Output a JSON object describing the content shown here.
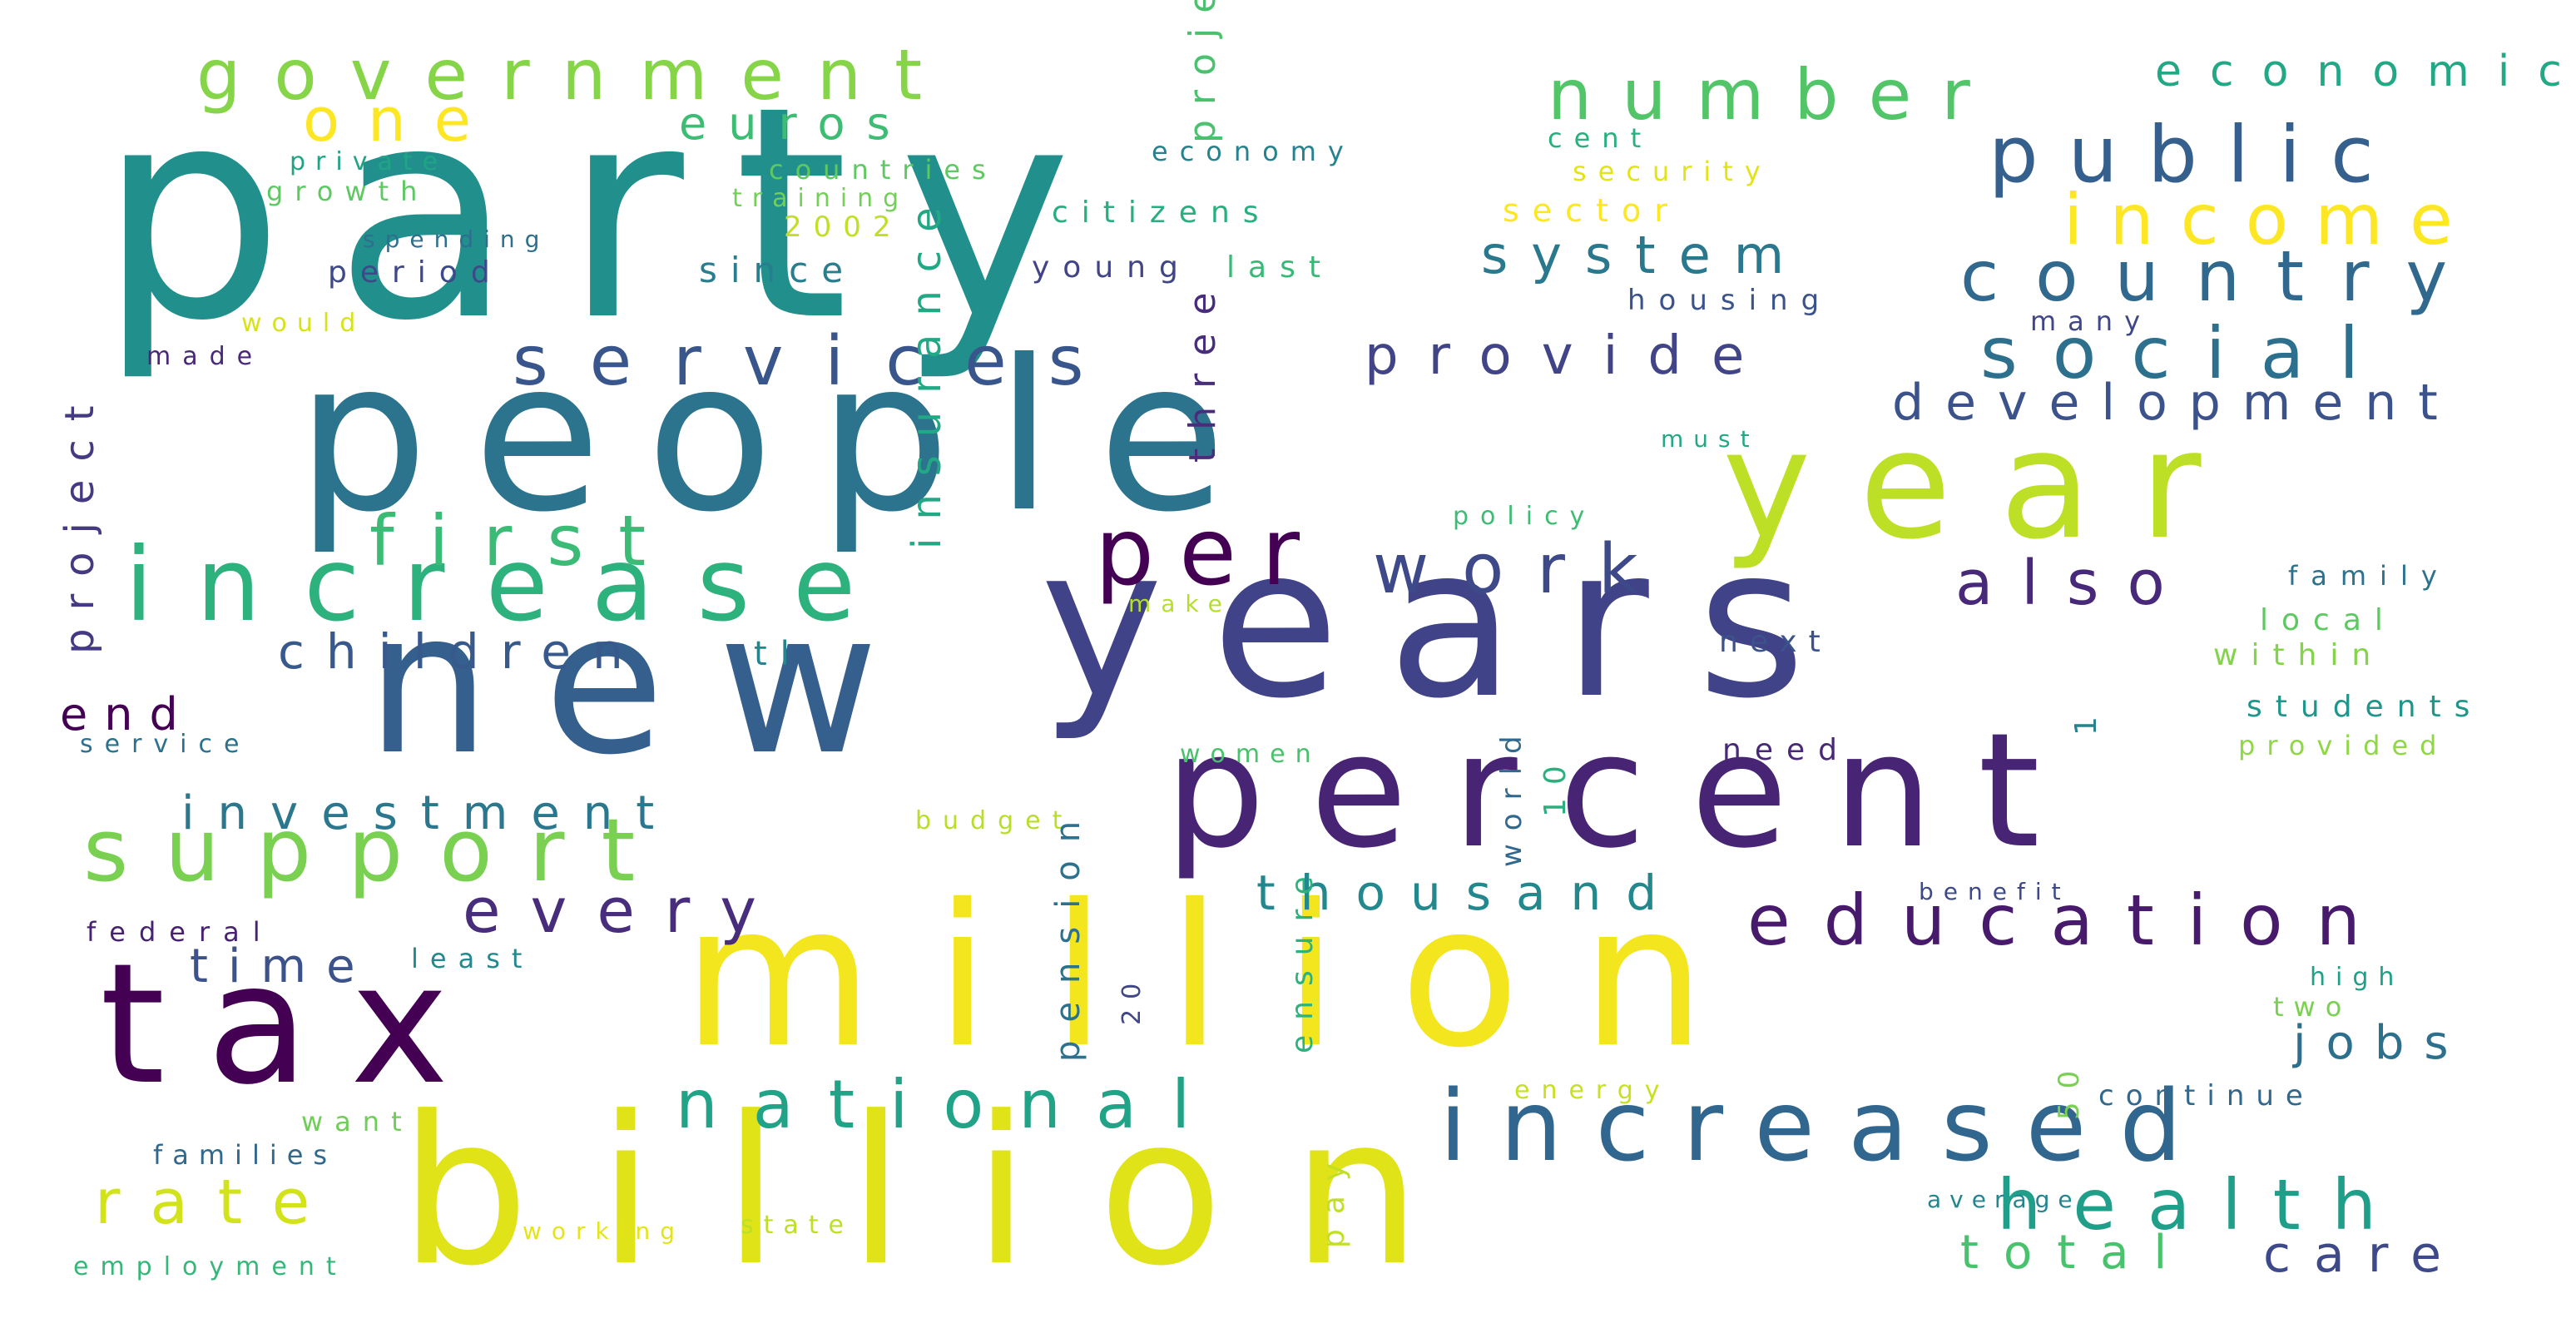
{
  "words": [
    {
      "text": "party",
      "color": "#21908d"
    },
    {
      "text": "people",
      "color": "#2c738e"
    },
    {
      "text": "new",
      "color": "#35608d"
    },
    {
      "text": "years",
      "color": "#404387"
    },
    {
      "text": "billion",
      "color": "#dfe318"
    },
    {
      "text": "million",
      "color": "#f4e61e"
    },
    {
      "text": "tax",
      "color": "#440154"
    },
    {
      "text": "percent",
      "color": "#482475"
    },
    {
      "text": "year",
      "color": "#bddf26"
    },
    {
      "text": "increase",
      "color": "#2db27d"
    },
    {
      "text": "increased",
      "color": "#31668e"
    },
    {
      "text": "support",
      "color": "#7ad151"
    },
    {
      "text": "government",
      "color": "#86d549"
    },
    {
      "text": "number",
      "color": "#52c569"
    },
    {
      "text": "public",
      "color": "#35608d"
    },
    {
      "text": "income",
      "color": "#fde725"
    },
    {
      "text": "country",
      "color": "#31688e"
    },
    {
      "text": "social",
      "color": "#2d708e"
    },
    {
      "text": "services",
      "color": "#39568c"
    },
    {
      "text": "development",
      "color": "#3b528b"
    },
    {
      "text": "education",
      "color": "#481a6c"
    },
    {
      "text": "national",
      "color": "#20a386"
    },
    {
      "text": "health",
      "color": "#1f9e89"
    },
    {
      "text": "first",
      "color": "#3bbb75"
    },
    {
      "text": "per",
      "color": "#440154"
    },
    {
      "text": "work",
      "color": "#3e4989"
    },
    {
      "text": "also",
      "color": "#482878"
    },
    {
      "text": "system",
      "color": "#2a788e"
    },
    {
      "text": "provide",
      "color": "#414487"
    },
    {
      "text": "one",
      "color": "#fde725"
    },
    {
      "text": "children",
      "color": "#38598c"
    },
    {
      "text": "every",
      "color": "#472d7b"
    },
    {
      "text": "investment",
      "color": "#2a778e"
    },
    {
      "text": "thousand",
      "color": "#23888e"
    },
    {
      "text": "rate",
      "color": "#d2e21b"
    },
    {
      "text": "total",
      "color": "#4ac16d"
    },
    {
      "text": "care",
      "color": "#3e4989"
    },
    {
      "text": "jobs",
      "color": "#2d708e"
    },
    {
      "text": "time",
      "color": "#3b528b"
    },
    {
      "text": "end",
      "color": "#440154"
    },
    {
      "text": "euros",
      "color": "#3dbc74"
    },
    {
      "text": "economic",
      "color": "#22a884"
    },
    {
      "text": "since",
      "color": "#287d8e"
    },
    {
      "text": "period",
      "color": "#3e4989"
    },
    {
      "text": "tl",
      "color": "#25848e"
    },
    {
      "text": "sector",
      "color": "#fde725"
    },
    {
      "text": "young",
      "color": "#414487"
    },
    {
      "text": "last",
      "color": "#38b977"
    },
    {
      "text": "citizens",
      "color": "#29af7f"
    },
    {
      "text": "2002",
      "color": "#c2df23"
    },
    {
      "text": "countries",
      "color": "#5ec962"
    },
    {
      "text": "training",
      "color": "#73d056"
    },
    {
      "text": "economy",
      "color": "#26828e"
    },
    {
      "text": "cent",
      "color": "#2ab07f"
    },
    {
      "text": "security",
      "color": "#e2e418"
    },
    {
      "text": "housing",
      "color": "#3b528b"
    },
    {
      "text": "many",
      "color": "#3f4788"
    },
    {
      "text": "must",
      "color": "#22a884"
    },
    {
      "text": "policy",
      "color": "#3dbc74"
    },
    {
      "text": "make",
      "color": "#b5de2b"
    },
    {
      "text": "next",
      "color": "#3b528b"
    },
    {
      "text": "need",
      "color": "#482878"
    },
    {
      "text": "women",
      "color": "#4ac16d"
    },
    {
      "text": "budget",
      "color": "#b8de29"
    },
    {
      "text": "family",
      "color": "#2c728e"
    },
    {
      "text": "local",
      "color": "#5ec962"
    },
    {
      "text": "within",
      "color": "#84d44b"
    },
    {
      "text": "students",
      "color": "#1f968b"
    },
    {
      "text": "provided",
      "color": "#8fd744"
    },
    {
      "text": "benefit",
      "color": "#3e4989"
    },
    {
      "text": "high",
      "color": "#1fa088"
    },
    {
      "text": "two",
      "color": "#7ad151"
    },
    {
      "text": "continue",
      "color": "#31688e"
    },
    {
      "text": "energy",
      "color": "#c8e020"
    },
    {
      "text": "least",
      "color": "#23898e"
    },
    {
      "text": "federal",
      "color": "#482173"
    },
    {
      "text": "service",
      "color": "#2d708e"
    },
    {
      "text": "private",
      "color": "#20a486"
    },
    {
      "text": "growth",
      "color": "#5ec962"
    },
    {
      "text": "spending",
      "color": "#2d708e"
    },
    {
      "text": "would",
      "color": "#d8e219"
    },
    {
      "text": "made",
      "color": "#482878"
    },
    {
      "text": "want",
      "color": "#6ece58"
    },
    {
      "text": "families",
      "color": "#31688e"
    },
    {
      "text": "employment",
      "color": "#35b779"
    },
    {
      "text": "working",
      "color": "#e5e419"
    },
    {
      "text": "state",
      "color": "#bddf26"
    },
    {
      "text": "average",
      "color": "#25858e"
    },
    {
      "text": "project",
      "color": "#443983"
    },
    {
      "text": "insurance",
      "color": "#22a884"
    },
    {
      "text": "three",
      "color": "#472d7b"
    },
    {
      "text": "projects",
      "color": "#4ac16d"
    },
    {
      "text": "pension",
      "color": "#2c728e"
    },
    {
      "text": "ensure",
      "color": "#2db27d"
    },
    {
      "text": "pay",
      "color": "#c2df23"
    },
    {
      "text": "world",
      "color": "#31688e"
    },
    {
      "text": "10",
      "color": "#2ab07f"
    },
    {
      "text": "1",
      "color": "#26828e"
    },
    {
      "text": "50",
      "color": "#7ad151"
    },
    {
      "text": "20",
      "color": "#3f4788"
    }
  ]
}
